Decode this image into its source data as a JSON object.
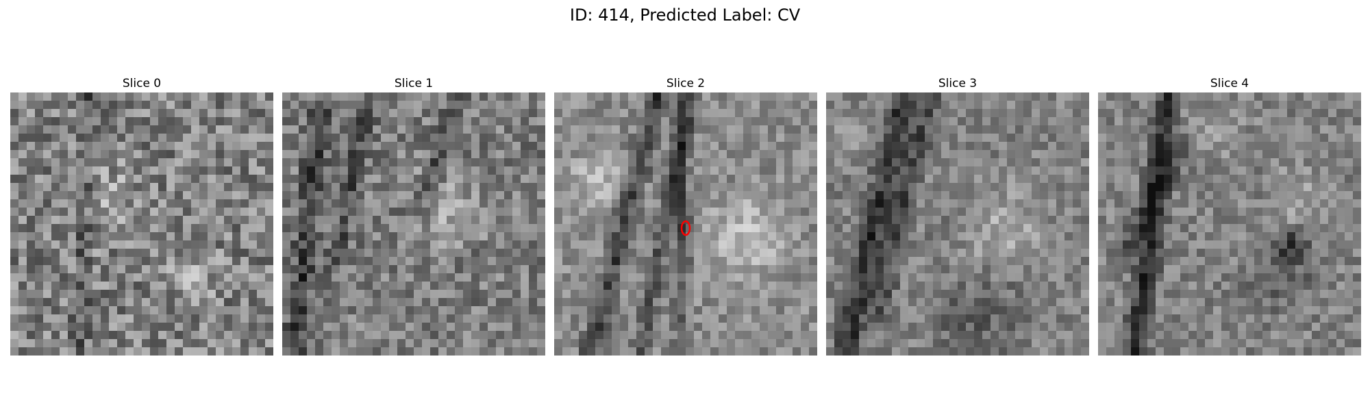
{
  "figure": {
    "title": "ID: 414, Predicted Label: CV"
  },
  "panels": [
    {
      "title": "Slice 0"
    },
    {
      "title": "Slice 1"
    },
    {
      "title": "Slice 2"
    },
    {
      "title": "Slice 3"
    },
    {
      "title": "Slice 4"
    }
  ],
  "colors": {
    "marker": "#ff0000",
    "background": "#ffffff",
    "colormap": "gray"
  }
}
